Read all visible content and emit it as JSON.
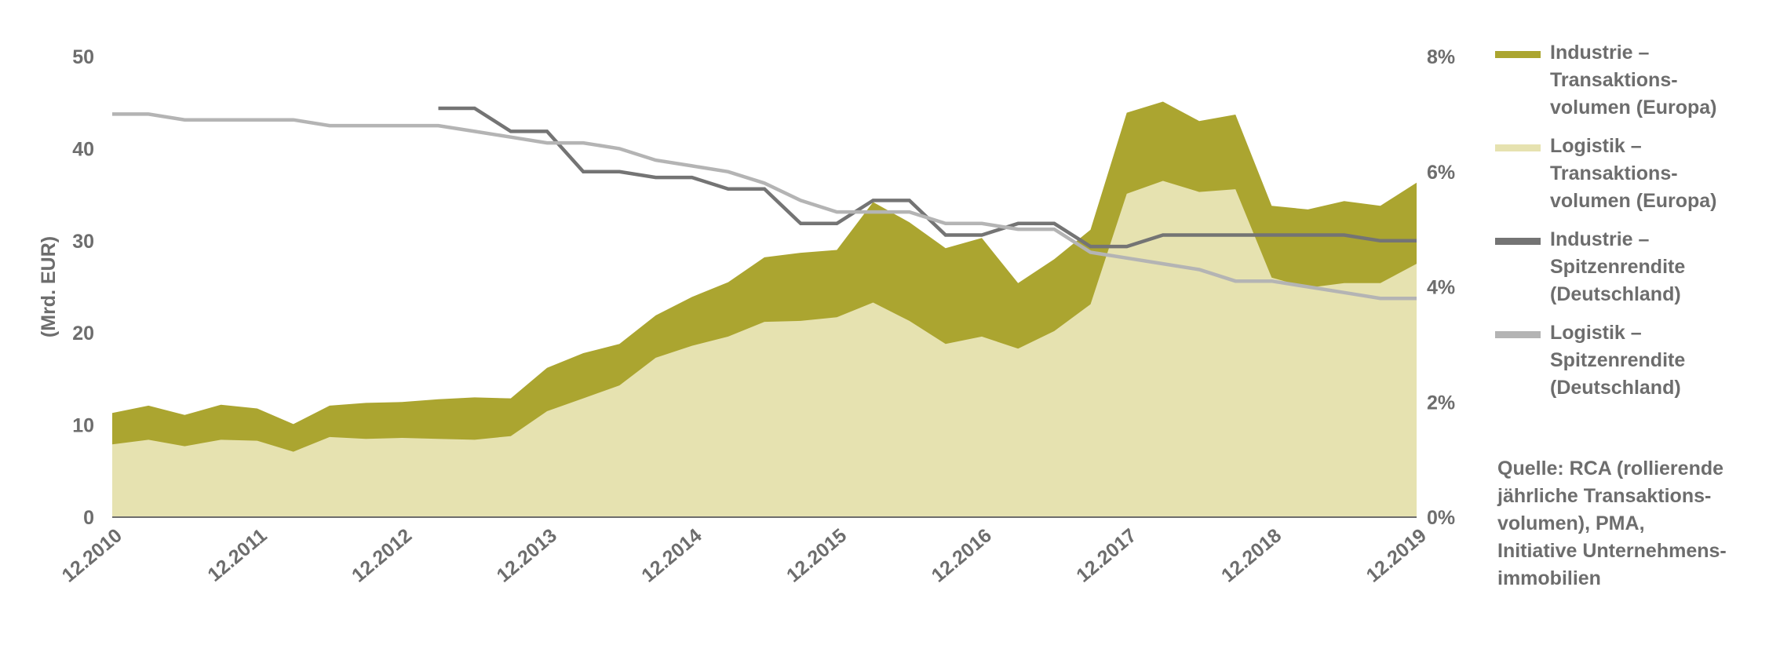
{
  "chart_data": {
    "type": "area",
    "ylabel": "(Mrd. EUR)",
    "ylim": [
      0,
      50
    ],
    "y2lim": [
      0,
      8
    ],
    "yticks": [
      "0",
      "10",
      "20",
      "30",
      "40",
      "50"
    ],
    "y2ticks": [
      "0%",
      "2%",
      "4%",
      "6%",
      "8%"
    ],
    "x_labels": [
      "12.2010",
      "12.2011",
      "12.2012",
      "12.2013",
      "12.2014",
      "12.2015",
      "12.2016",
      "12.2017",
      "12.2018",
      "12.2019"
    ],
    "x": [
      "12.2010",
      "03.2011",
      "06.2011",
      "09.2011",
      "12.2011",
      "03.2012",
      "06.2012",
      "09.2012",
      "12.2012",
      "03.2013",
      "06.2013",
      "09.2013",
      "12.2013",
      "03.2014",
      "06.2014",
      "09.2014",
      "12.2014",
      "03.2015",
      "06.2015",
      "09.2015",
      "12.2015",
      "03.2016",
      "06.2016",
      "09.2016",
      "12.2016",
      "03.2017",
      "06.2017",
      "09.2017",
      "12.2017",
      "03.2018",
      "06.2018",
      "09.2018",
      "12.2018",
      "03.2019",
      "06.2019",
      "09.2019",
      "12.2019"
    ],
    "series": [
      {
        "name": "Industrie – Transaktionsvolumen (Europa)",
        "axis": "left",
        "color": "#aba530",
        "values": [
          11.3,
          12.1,
          11.1,
          12.2,
          11.8,
          10.1,
          12.1,
          12.4,
          12.5,
          12.8,
          13.0,
          12.9,
          16.2,
          17.8,
          18.8,
          21.9,
          23.9,
          25.5,
          28.2,
          28.7,
          29.0,
          34.2,
          32.0,
          29.2,
          30.3,
          25.4,
          28.0,
          31.2,
          43.9,
          45.1,
          43.0,
          43.7,
          33.8,
          33.4,
          34.3,
          33.8,
          36.3
        ]
      },
      {
        "name": "Logistik – Transaktionsvolumen (Europa)",
        "axis": "left",
        "color": "#e6e2b0",
        "values": [
          7.9,
          8.4,
          7.7,
          8.4,
          8.3,
          7.1,
          8.7,
          8.5,
          8.6,
          8.5,
          8.4,
          8.8,
          11.5,
          12.9,
          14.3,
          17.3,
          18.6,
          19.6,
          21.2,
          21.3,
          21.7,
          23.3,
          21.3,
          18.8,
          19.6,
          18.3,
          20.2,
          23.1,
          35.1,
          36.5,
          35.3,
          35.6,
          26.0,
          24.9,
          25.4,
          25.4,
          27.5
        ]
      },
      {
        "name": "Industrie – Spitzenrendite (Deutschland)",
        "axis": "right",
        "color": "#747474",
        "values": [
          null,
          null,
          null,
          null,
          null,
          null,
          null,
          null,
          null,
          7.1,
          7.1,
          6.7,
          6.7,
          6.0,
          6.0,
          5.9,
          5.9,
          5.7,
          5.7,
          5.1,
          5.1,
          5.5,
          5.5,
          4.9,
          4.9,
          5.1,
          5.1,
          4.7,
          4.7,
          4.9,
          4.9,
          4.9,
          4.9,
          4.9,
          4.9,
          4.8,
          4.8
        ]
      },
      {
        "name": "Logistik – Spitzenrendite (Deutschland)",
        "axis": "right",
        "color": "#b4b4b4",
        "values": [
          7.0,
          7.0,
          6.9,
          6.9,
          6.9,
          6.9,
          6.8,
          6.8,
          6.8,
          6.8,
          6.7,
          6.6,
          6.5,
          6.5,
          6.4,
          6.2,
          6.1,
          6.0,
          5.8,
          5.5,
          5.3,
          5.3,
          5.3,
          5.1,
          5.1,
          5.0,
          5.0,
          4.6,
          4.5,
          4.4,
          4.3,
          4.1,
          4.1,
          4.0,
          3.9,
          3.8,
          3.8
        ]
      }
    ],
    "legend_placement": "right",
    "grid": false
  },
  "legend": [
    {
      "lines": [
        "Industrie –",
        "Transaktions-",
        "volumen (Europa)"
      ],
      "color": "#aba530"
    },
    {
      "lines": [
        "Logistik –",
        "Transaktions-",
        "volumen (Europa)"
      ],
      "color": "#e6e2b0"
    },
    {
      "lines": [
        "Industrie –",
        "Spitzenrendite",
        "(Deutschland)"
      ],
      "color": "#747474"
    },
    {
      "lines": [
        "Logistik –",
        "Spitzenrendite",
        "(Deutschland)"
      ],
      "color": "#b4b4b4"
    }
  ],
  "source": "Quelle: RCA (rollierende jährliche Transaktions-volumen), PMA, Initiative Unternehmens-immobilien",
  "source_lines": [
    "Quelle: RCA (rollierende",
    "jährliche Transaktions-",
    "volumen), PMA,",
    "Initiative Unternehmens-",
    "immobilien"
  ]
}
